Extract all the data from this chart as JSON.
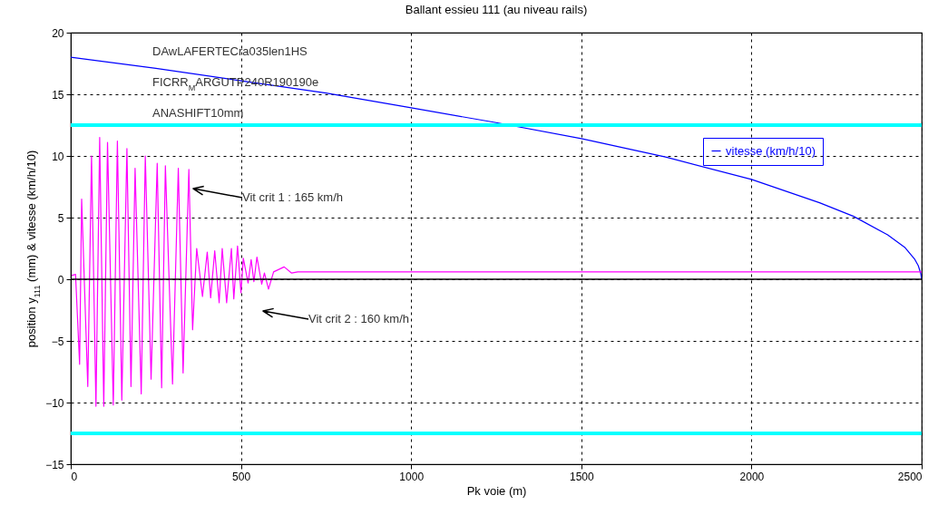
{
  "chart_data": {
    "type": "line",
    "title": "Ballant essieu 111 (au niveau rails)",
    "xlabel": "Pk voie (m)",
    "ylabel": "position y$_{111}$ (mm) & vitesse (km/h/10)",
    "xlim": [
      0,
      2500
    ],
    "xticks": [
      0,
      500,
      1000,
      1500,
      2000,
      2500
    ],
    "ylim": [
      -15,
      20
    ],
    "yticks": [
      -15,
      -10,
      -5,
      0,
      5,
      10,
      15,
      20
    ],
    "grid": true,
    "legend": "top right",
    "series": [
      {
        "name": "vitesse (km/h/10)",
        "color": "#0000ff",
        "x": [
          0,
          250,
          500,
          750,
          1000,
          1250,
          1500,
          1750,
          2000,
          2200,
          2300,
          2400,
          2450,
          2480,
          2490,
          2497,
          2500
        ],
        "values": [
          18,
          17.1,
          16.1,
          15.1,
          13.9,
          12.7,
          11.4,
          9.9,
          8.1,
          6.2,
          5.1,
          3.6,
          2.6,
          1.6,
          1.1,
          0.5,
          0
        ]
      },
      {
        "color": "#ff00ff",
        "x": [
          3,
          14,
          26,
          32,
          50,
          61,
          74,
          85,
          97,
          108,
          125,
          137,
          150,
          165,
          177,
          189,
          207,
          219,
          236,
          254,
          267,
          278,
          299,
          316,
          330,
          347,
          358,
          370,
          387,
          401,
          411,
          423,
          436,
          445,
          458,
          472,
          479,
          490,
          500,
          507,
          521,
          530,
          538,
          547,
          561,
          569,
          581,
          596,
          627,
          649,
          667,
          2500
        ],
        "values": [
          0.3,
          0.4,
          -6.9,
          6.5,
          -8.7,
          10,
          -10.3,
          11.5,
          -10.3,
          11.1,
          -10.2,
          11.2,
          -9.8,
          10.6,
          -8.7,
          9,
          -9.3,
          10,
          -8.1,
          9.4,
          -8.8,
          9.2,
          -8.5,
          9,
          -7.6,
          8.9,
          -4.1,
          2.5,
          -1.4,
          2.2,
          -1.5,
          2.3,
          -1.9,
          2.5,
          -1.9,
          2.5,
          -1.6,
          2.7,
          -1.1,
          1.7,
          -0.3,
          1.6,
          -0.2,
          1.8,
          -0.4,
          0.5,
          -0.8,
          0.6,
          1,
          0.5,
          0.6,
          0.6
        ]
      }
    ],
    "ref_lines": [
      {
        "axis": "y",
        "value": 0,
        "color": "#000000"
      },
      {
        "axis": "y",
        "value": 12.5,
        "color": "#00ffff"
      },
      {
        "axis": "y",
        "value": -12.5,
        "color": "#00ffff"
      }
    ],
    "annotations": [
      "DAwLAFERTECra035len1HS",
      "FICRR$_{M}$ARGUTP240R190190e",
      "ANASHIFT10mm",
      "Vit crit 1 : 165 km/h",
      "Vit crit 2 : 160 km/h"
    ]
  }
}
